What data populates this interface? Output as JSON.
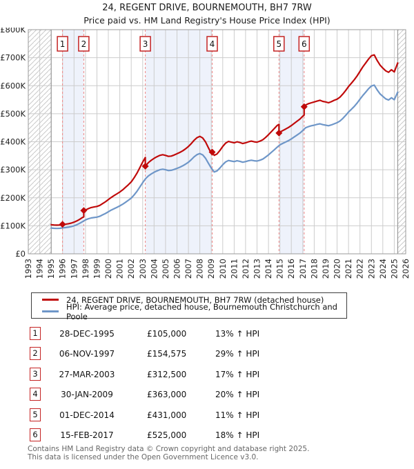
{
  "chart_data": {
    "type": "line",
    "title": "24, REGENT DRIVE, BOURNEMOUTH, BH7 7RW",
    "subtitle": "Price paid vs. HM Land Registry's House Price Index (HPI)",
    "unit": "GBP thousands",
    "x_range": [
      1993,
      2026
    ],
    "y_max_k": 800,
    "grid": true,
    "x_ticks": [
      1993,
      1994,
      1995,
      1996,
      1997,
      1998,
      1999,
      2000,
      2001,
      2002,
      2003,
      2004,
      2005,
      2006,
      2007,
      2008,
      2009,
      2010,
      2011,
      2012,
      2013,
      2014,
      2015,
      2016,
      2017,
      2018,
      2019,
      2020,
      2021,
      2022,
      2023,
      2024,
      2025,
      2026
    ],
    "y_ticks": [
      {
        "v": 0,
        "label": "£0"
      },
      {
        "v": 100,
        "label": "£100K"
      },
      {
        "v": 200,
        "label": "£200K"
      },
      {
        "v": 300,
        "label": "£300K"
      },
      {
        "v": 400,
        "label": "£400K"
      },
      {
        "v": 500,
        "label": "£500K"
      },
      {
        "v": 600,
        "label": "£600K"
      },
      {
        "v": 700,
        "label": "£700K"
      },
      {
        "v": 800,
        "label": "£800K"
      }
    ],
    "colors": {
      "price": "#c00a0a",
      "hpi": "#6e96c8",
      "band": "#eef2fb",
      "grid": "#cccccc",
      "frame": "#9a9a9a",
      "sale_dash": "#ef8585",
      "flag_border": "#c42222",
      "hatch": "#c9c9c9"
    },
    "ownership_bands": [
      [
        1995.99,
        1997.85
      ],
      [
        2003.23,
        2009.08
      ],
      [
        2014.92,
        2017.12
      ]
    ],
    "hatch_regions": [
      [
        1993,
        1995.0
      ],
      [
        2025.3,
        2026
      ]
    ],
    "sales": [
      {
        "num": "1",
        "date": "28-DEC-1995",
        "year": 1995.99,
        "value_k": 105,
        "price": "£105,000",
        "pct": "13% ↑ HPI"
      },
      {
        "num": "2",
        "date": "06-NOV-1997",
        "year": 1997.85,
        "value_k": 154.575,
        "price": "£154,575",
        "pct": "29% ↑ HPI"
      },
      {
        "num": "3",
        "date": "27-MAR-2003",
        "year": 2003.23,
        "value_k": 312.5,
        "price": "£312,500",
        "pct": "17% ↑ HPI"
      },
      {
        "num": "4",
        "date": "30-JAN-2009",
        "year": 2009.08,
        "value_k": 363,
        "price": "£363,000",
        "pct": "20% ↑ HPI"
      },
      {
        "num": "5",
        "date": "01-DEC-2014",
        "year": 2014.92,
        "value_k": 431,
        "price": "£431,000",
        "pct": "11% ↑ HPI"
      },
      {
        "num": "6",
        "date": "15-FEB-2017",
        "year": 2017.12,
        "value_k": 525,
        "price": "£525,000",
        "pct": "18% ↑ HPI"
      }
    ],
    "series": [
      {
        "id": "price-paid-line",
        "name": "24, REGENT DRIVE, BOURNEMOUTH, BH7 7RW (detached house)",
        "color": "#c00a0a",
        "points": [
          [
            1995,
            104
          ],
          [
            1995.25,
            102.8
          ],
          [
            1995.5,
            102.3
          ],
          [
            1995.75,
            102.8
          ],
          [
            1995.99,
            105
          ],
          [
            1996.25,
            105.7
          ],
          [
            1996.5,
            107.4
          ],
          [
            1996.75,
            109.6
          ],
          [
            1997,
            113
          ],
          [
            1997.25,
            117.5
          ],
          [
            1997.5,
            123.2
          ],
          [
            1997.75,
            130
          ],
          [
            1997.85,
            132
          ],
          [
            1997.85,
            154.6
          ],
          [
            1998,
            156.1
          ],
          [
            1998.25,
            161.3
          ],
          [
            1998.5,
            165.1
          ],
          [
            1998.75,
            167.1
          ],
          [
            1999,
            169
          ],
          [
            1999.25,
            172.9
          ],
          [
            1999.5,
            179.3
          ],
          [
            1999.75,
            185.8
          ],
          [
            2000,
            193.5
          ],
          [
            2000.25,
            201.2
          ],
          [
            2000.5,
            207.7
          ],
          [
            2000.75,
            214.1
          ],
          [
            2001,
            220.6
          ],
          [
            2001.25,
            228.3
          ],
          [
            2001.5,
            237.4
          ],
          [
            2001.75,
            246.4
          ],
          [
            2002,
            256.7
          ],
          [
            2002.25,
            270.9
          ],
          [
            2002.5,
            287.7
          ],
          [
            2002.75,
            307
          ],
          [
            2003,
            327.7
          ],
          [
            2003.23,
            344
          ],
          [
            2003.23,
            312.5
          ],
          [
            2003.5,
            325.5
          ],
          [
            2003.75,
            333.7
          ],
          [
            2004,
            340.7
          ],
          [
            2004.25,
            346.6
          ],
          [
            2004.5,
            351.2
          ],
          [
            2004.75,
            353.6
          ],
          [
            2005,
            351.2
          ],
          [
            2005.25,
            347.7
          ],
          [
            2005.5,
            348.9
          ],
          [
            2005.75,
            352.4
          ],
          [
            2006,
            357.1
          ],
          [
            2006.25,
            361.8
          ],
          [
            2006.5,
            367.6
          ],
          [
            2006.75,
            374.7
          ],
          [
            2007,
            382.9
          ],
          [
            2007.25,
            393.4
          ],
          [
            2007.5,
            405.1
          ],
          [
            2007.75,
            414.5
          ],
          [
            2008,
            419.2
          ],
          [
            2008.25,
            413.3
          ],
          [
            2008.5,
            399.3
          ],
          [
            2008.75,
            378.2
          ],
          [
            2009,
            358.3
          ],
          [
            2009.08,
            354.5
          ],
          [
            2009.08,
            363
          ],
          [
            2009.25,
            351.6
          ],
          [
            2009.5,
            356.4
          ],
          [
            2009.75,
            368.4
          ],
          [
            2010,
            382.9
          ],
          [
            2010.25,
            394.9
          ],
          [
            2010.5,
            400.9
          ],
          [
            2010.75,
            398.5
          ],
          [
            2011,
            396.1
          ],
          [
            2011.25,
            399.7
          ],
          [
            2011.5,
            397.3
          ],
          [
            2011.75,
            393.7
          ],
          [
            2012,
            396.1
          ],
          [
            2012.25,
            399.7
          ],
          [
            2012.5,
            402.1
          ],
          [
            2012.75,
            399.7
          ],
          [
            2013,
            398.5
          ],
          [
            2013.25,
            402.1
          ],
          [
            2013.5,
            406.9
          ],
          [
            2013.75,
            415.3
          ],
          [
            2014,
            425
          ],
          [
            2014.25,
            435.8
          ],
          [
            2014.5,
            446.7
          ],
          [
            2014.75,
            457.5
          ],
          [
            2014.92,
            462
          ],
          [
            2014.92,
            431
          ],
          [
            2015,
            434.2
          ],
          [
            2015.25,
            439.8
          ],
          [
            2015.5,
            445.4
          ],
          [
            2015.75,
            451
          ],
          [
            2016,
            457.7
          ],
          [
            2016.25,
            465.5
          ],
          [
            2016.5,
            473.3
          ],
          [
            2016.75,
            481.1
          ],
          [
            2017,
            491.2
          ],
          [
            2017.12,
            495
          ],
          [
            2017.12,
            525
          ],
          [
            2017.25,
            531
          ],
          [
            2017.5,
            536
          ],
          [
            2017.75,
            539
          ],
          [
            2018,
            542
          ],
          [
            2018.25,
            545
          ],
          [
            2018.5,
            548
          ],
          [
            2018.75,
            544
          ],
          [
            2019,
            542
          ],
          [
            2019.25,
            539
          ],
          [
            2019.5,
            543
          ],
          [
            2019.75,
            548
          ],
          [
            2020,
            552
          ],
          [
            2020.25,
            559
          ],
          [
            2020.5,
            570
          ],
          [
            2020.75,
            583
          ],
          [
            2021,
            597
          ],
          [
            2021.25,
            609
          ],
          [
            2021.5,
            621
          ],
          [
            2021.75,
            635
          ],
          [
            2022,
            651
          ],
          [
            2022.25,
            667
          ],
          [
            2022.5,
            681
          ],
          [
            2022.75,
            695
          ],
          [
            2023,
            707
          ],
          [
            2023.25,
            710
          ],
          [
            2023.5,
            690
          ],
          [
            2023.75,
            674
          ],
          [
            2024,
            663
          ],
          [
            2024.25,
            653
          ],
          [
            2024.5,
            648
          ],
          [
            2024.75,
            657
          ],
          [
            2025,
            649
          ],
          [
            2025.3,
            681
          ]
        ]
      },
      {
        "id": "hpi-line",
        "name": "HPI: Average price, detached house, Bournemouth Christchurch and Poole",
        "color": "#6e96c8",
        "points": [
          [
            1995,
            92
          ],
          [
            1995.25,
            91
          ],
          [
            1995.5,
            90.5
          ],
          [
            1995.75,
            91
          ],
          [
            1996,
            92.5
          ],
          [
            1996.25,
            93.5
          ],
          [
            1996.5,
            95
          ],
          [
            1996.75,
            97
          ],
          [
            1997,
            100
          ],
          [
            1997.25,
            104
          ],
          [
            1997.5,
            109
          ],
          [
            1997.75,
            115
          ],
          [
            1998,
            121
          ],
          [
            1998.25,
            125
          ],
          [
            1998.5,
            128
          ],
          [
            1998.75,
            129.5
          ],
          [
            1999,
            131
          ],
          [
            1999.25,
            134
          ],
          [
            1999.5,
            139
          ],
          [
            1999.75,
            144
          ],
          [
            2000,
            150
          ],
          [
            2000.25,
            156
          ],
          [
            2000.5,
            161
          ],
          [
            2000.75,
            166
          ],
          [
            2001,
            171
          ],
          [
            2001.25,
            177
          ],
          [
            2001.5,
            184
          ],
          [
            2001.75,
            191
          ],
          [
            2002,
            199
          ],
          [
            2002.25,
            210
          ],
          [
            2002.5,
            223
          ],
          [
            2002.75,
            238
          ],
          [
            2003,
            254
          ],
          [
            2003.25,
            268
          ],
          [
            2003.5,
            278
          ],
          [
            2003.75,
            285
          ],
          [
            2004,
            291
          ],
          [
            2004.25,
            296
          ],
          [
            2004.5,
            300
          ],
          [
            2004.75,
            302
          ],
          [
            2005,
            300
          ],
          [
            2005.25,
            297
          ],
          [
            2005.5,
            298
          ],
          [
            2005.75,
            301
          ],
          [
            2006,
            305
          ],
          [
            2006.25,
            309
          ],
          [
            2006.5,
            314
          ],
          [
            2006.75,
            320
          ],
          [
            2007,
            327
          ],
          [
            2007.25,
            336
          ],
          [
            2007.5,
            346
          ],
          [
            2007.75,
            354
          ],
          [
            2008,
            358
          ],
          [
            2008.25,
            353
          ],
          [
            2008.5,
            341
          ],
          [
            2008.75,
            323
          ],
          [
            2009,
            306
          ],
          [
            2009.25,
            292
          ],
          [
            2009.5,
            296
          ],
          [
            2009.75,
            306
          ],
          [
            2010,
            318
          ],
          [
            2010.25,
            328
          ],
          [
            2010.5,
            333
          ],
          [
            2010.75,
            331
          ],
          [
            2011,
            329
          ],
          [
            2011.25,
            332
          ],
          [
            2011.5,
            330
          ],
          [
            2011.75,
            327
          ],
          [
            2012,
            329
          ],
          [
            2012.25,
            332
          ],
          [
            2012.5,
            334
          ],
          [
            2012.75,
            332
          ],
          [
            2013,
            331
          ],
          [
            2013.25,
            334
          ],
          [
            2013.5,
            338
          ],
          [
            2013.75,
            345
          ],
          [
            2014,
            353
          ],
          [
            2014.25,
            362
          ],
          [
            2014.5,
            371
          ],
          [
            2014.75,
            380
          ],
          [
            2015,
            389
          ],
          [
            2015.25,
            394
          ],
          [
            2015.5,
            399
          ],
          [
            2015.75,
            404
          ],
          [
            2016,
            410
          ],
          [
            2016.25,
            417
          ],
          [
            2016.5,
            424
          ],
          [
            2016.75,
            431
          ],
          [
            2017,
            440
          ],
          [
            2017.25,
            450
          ],
          [
            2017.5,
            454
          ],
          [
            2017.75,
            457
          ],
          [
            2018,
            459
          ],
          [
            2018.25,
            462
          ],
          [
            2018.5,
            464
          ],
          [
            2018.75,
            461
          ],
          [
            2019,
            459
          ],
          [
            2019.25,
            457
          ],
          [
            2019.5,
            460
          ],
          [
            2019.75,
            464
          ],
          [
            2020,
            468
          ],
          [
            2020.25,
            474
          ],
          [
            2020.5,
            483
          ],
          [
            2020.75,
            494
          ],
          [
            2021,
            506
          ],
          [
            2021.25,
            516
          ],
          [
            2021.5,
            526
          ],
          [
            2021.75,
            538
          ],
          [
            2022,
            552
          ],
          [
            2022.25,
            565
          ],
          [
            2022.5,
            577
          ],
          [
            2022.75,
            589
          ],
          [
            2023,
            599
          ],
          [
            2023.25,
            602
          ],
          [
            2023.5,
            585
          ],
          [
            2023.75,
            571
          ],
          [
            2024,
            562
          ],
          [
            2024.25,
            553
          ],
          [
            2024.5,
            549
          ],
          [
            2024.75,
            557
          ],
          [
            2025,
            550
          ],
          [
            2025.3,
            577
          ]
        ]
      }
    ]
  },
  "legend": {
    "items": [
      {
        "label": "24, REGENT DRIVE, BOURNEMOUTH, BH7 7RW (detached house)",
        "color": "#c00a0a"
      },
      {
        "label": "HPI: Average price, detached house, Bournemouth Christchurch and Poole",
        "color": "#6e96c8"
      }
    ]
  },
  "footer": {
    "line1": "Contains HM Land Registry data © Crown copyright and database right 2025.",
    "line2": "This data is licensed under the Open Government Licence v3.0."
  }
}
